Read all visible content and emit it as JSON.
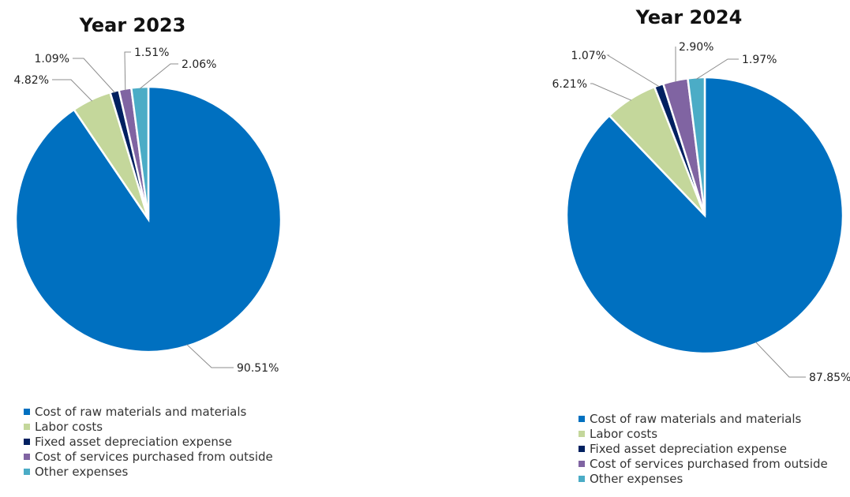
{
  "chart_data": [
    {
      "type": "pie",
      "title": "Year 2023",
      "categories": [
        "Cost of raw materials and materials",
        "Labor costs",
        "Fixed asset depreciation expense",
        "Cost of services purchased from outside",
        "Other expenses"
      ],
      "values": [
        90.51,
        4.82,
        1.09,
        1.51,
        2.06
      ],
      "labels": [
        "90.51%",
        "4.82%",
        "1.09%",
        "1.51%",
        "2.06%"
      ],
      "colors": [
        "#0070C0",
        "#C4D79B",
        "#002060",
        "#8064A2",
        "#4BACC6"
      ],
      "legend_position": "bottom"
    },
    {
      "type": "pie",
      "title": "Year 2024",
      "categories": [
        "Cost of raw materials and materials",
        "Labor costs",
        "Fixed asset depreciation expense",
        "Cost of services purchased from outside",
        "Other expenses"
      ],
      "values": [
        87.85,
        6.21,
        1.07,
        2.9,
        1.97
      ],
      "labels": [
        "87.85%",
        "6.21%",
        "1.07%",
        "2.90%",
        "1.97%"
      ],
      "colors": [
        "#0070C0",
        "#C4D79B",
        "#002060",
        "#8064A2",
        "#4BACC6"
      ],
      "legend_position": "bottom"
    }
  ]
}
